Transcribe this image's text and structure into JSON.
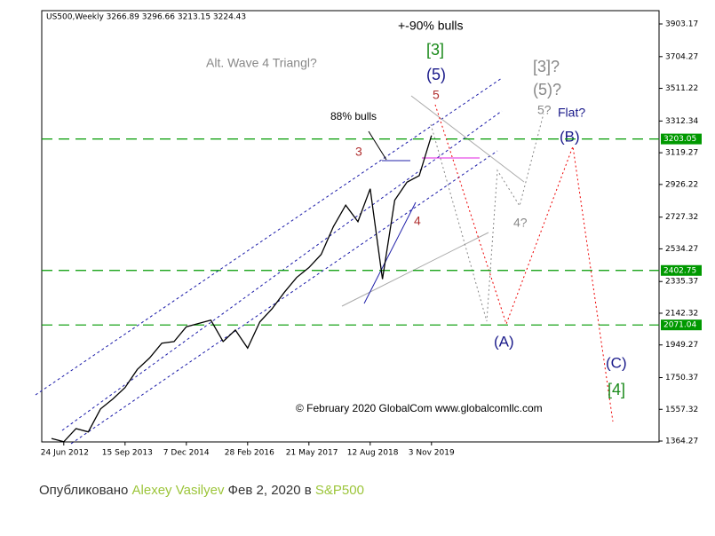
{
  "chart_data": {
    "type": "line",
    "title": "US500,Weekly  3266.89 3296.66 3213.15 3224.43",
    "categories": [
      null,
      "24 Jun 2012",
      null,
      null,
      null,
      null,
      "15 Sep 2013",
      null,
      null,
      null,
      null,
      "7 Dec 2014",
      null,
      null,
      null,
      null,
      "28 Feb 2016",
      null,
      null,
      null,
      null,
      "21 May 2017",
      null,
      null,
      null,
      null,
      "12 Aug 2018",
      null,
      null,
      null,
      null,
      "3 Nov 2019"
    ],
    "series": [
      {
        "color": "#000000",
        "values": [
          1380,
          1360,
          1440,
          1420,
          1560,
          1620,
          1690,
          1800,
          1870,
          1960,
          1970,
          2060,
          2080,
          2100,
          1970,
          2040,
          1930,
          2090,
          2170,
          2270,
          2360,
          2420,
          2500,
          2670,
          2800,
          2700,
          2900,
          2350,
          2830,
          2940,
          2980,
          3224.43
        ]
      }
    ],
    "ylim": [
      1364.27,
      3903.17
    ],
    "yticks": [
      1364.27,
      1557.32,
      1750.37,
      1949.27,
      2142.32,
      2335.37,
      2534.27,
      2727.32,
      2926.22,
      3119.27,
      3312.34,
      3511.22,
      3704.27,
      3903.17
    ],
    "levels": [
      3203.05,
      2402.75,
      2071.04
    ],
    "level_color": "#009900",
    "annotations": [
      "+-90% bulls",
      "[3]",
      "(5)",
      "5",
      "Alt. Wave 4 Triangl?",
      "[3]?",
      "(5)?",
      "5?",
      "Flat?",
      "(B)",
      "88% bulls",
      "3",
      "4",
      "4?",
      "(A)",
      "(C)",
      "[4]",
      "© February 2020 GlobalCom www.globalcomllc.com"
    ]
  },
  "caption": {
    "prefix": "Опубликовано",
    "author": "Alexey Vasilyev",
    "date": "Фев 2, 2020 в",
    "symbol": "S&P500"
  }
}
